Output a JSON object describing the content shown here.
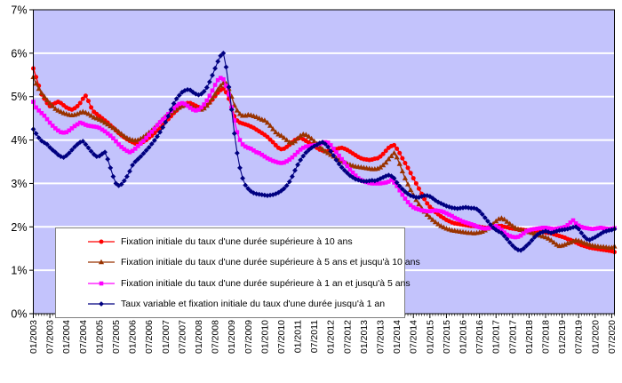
{
  "chart_data": {
    "type": "line",
    "title": "",
    "x_axis": {
      "label": "",
      "unit": "month",
      "start": "01/2003",
      "end": "08/2020",
      "n_months": 212,
      "tick_interval_months": 6,
      "tick_labels": [
        "01/2003",
        "07/2003",
        "01/2004",
        "07/2004",
        "01/2005",
        "07/2005",
        "01/2006",
        "07/2006",
        "01/2007",
        "07/2007",
        "01/2008",
        "07/2008",
        "01/2009",
        "07/2009",
        "01/2010",
        "07/2010",
        "01/2011",
        "07/2011",
        "01/2012",
        "07/2012",
        "01/2013",
        "07/2013",
        "01/2014",
        "07/2014",
        "01/2015",
        "07/2015",
        "01/2016",
        "07/2016",
        "01/2017",
        "07/2017",
        "01/2018",
        "07/2018",
        "01/2019",
        "07/2019",
        "01/2020",
        "07/2020"
      ]
    },
    "y_axis": {
      "label": "",
      "min": 0,
      "max": 7,
      "tick_labels": [
        "0%",
        "1%",
        "2%",
        "3%",
        "4%",
        "5%",
        "6%",
        "7%"
      ]
    },
    "layout": {
      "plot_background": "#C3C3FC",
      "gridline_color": "#FFFFFF",
      "border_color": "#000000",
      "outer_background": "#FFFFFF",
      "grid": "horizontal",
      "legend_position": "bottom-left-inside"
    },
    "series": [
      {
        "name": "Fixation initiale du taux d'une durée supérieure à 10 ans",
        "marker": "circle",
        "color": "#FF0000",
        "values": [
          5.65,
          5.45,
          5.25,
          5.05,
          4.95,
          4.85,
          4.78,
          4.82,
          4.85,
          4.88,
          4.85,
          4.8,
          4.75,
          4.72,
          4.7,
          4.73,
          4.78,
          4.85,
          4.95,
          5.02,
          4.9,
          4.75,
          4.65,
          4.6,
          4.55,
          4.5,
          4.45,
          4.4,
          4.34,
          4.28,
          4.22,
          4.16,
          4.11,
          4.06,
          4.02,
          3.98,
          3.95,
          3.92,
          3.9,
          3.92,
          3.96,
          4.0,
          4.05,
          4.1,
          4.16,
          4.22,
          4.28,
          4.35,
          4.42,
          4.48,
          4.55,
          4.62,
          4.68,
          4.74,
          4.79,
          4.83,
          4.85,
          4.85,
          4.82,
          4.79,
          4.76,
          4.74,
          4.76,
          4.8,
          4.86,
          4.93,
          5.01,
          5.09,
          5.15,
          5.18,
          5.1,
          4.95,
          4.75,
          4.55,
          4.45,
          4.4,
          4.38,
          4.36,
          4.34,
          4.31,
          4.28,
          4.24,
          4.2,
          4.16,
          4.12,
          4.07,
          4.01,
          3.95,
          3.88,
          3.82,
          3.79,
          3.8,
          3.84,
          3.89,
          3.95,
          4.0,
          4.03,
          4.05,
          4.02,
          3.98,
          3.94,
          3.9,
          3.86,
          3.82,
          3.78,
          3.76,
          3.74,
          3.74,
          3.75,
          3.77,
          3.79,
          3.81,
          3.82,
          3.8,
          3.77,
          3.73,
          3.69,
          3.65,
          3.61,
          3.58,
          3.56,
          3.55,
          3.54,
          3.55,
          3.57,
          3.58,
          3.62,
          3.68,
          3.75,
          3.82,
          3.86,
          3.88,
          3.8,
          3.7,
          3.58,
          3.47,
          3.36,
          3.24,
          3.12,
          3.0,
          2.88,
          2.76,
          2.64,
          2.54,
          2.46,
          2.4,
          2.34,
          2.29,
          2.24,
          2.2,
          2.16,
          2.13,
          2.1,
          2.08,
          2.07,
          2.06,
          2.05,
          2.04,
          2.03,
          2.02,
          2.02,
          2.01,
          2.0,
          1.99,
          1.98,
          1.98,
          1.99,
          2.0,
          2.01,
          2.02,
          2.02,
          2.0,
          1.99,
          1.97,
          1.96,
          1.95,
          1.94,
          1.94,
          1.93,
          1.92,
          1.92,
          1.91,
          1.91,
          1.9,
          1.89,
          1.88,
          1.87,
          1.86,
          1.85,
          1.83,
          1.81,
          1.79,
          1.77,
          1.75,
          1.72,
          1.7,
          1.67,
          1.64,
          1.61,
          1.58,
          1.56,
          1.54,
          1.52,
          1.51,
          1.5,
          1.49,
          1.48,
          1.47,
          1.46,
          1.45,
          1.44,
          1.42
        ]
      },
      {
        "name": "Fixation initiale du taux d'une durée supérieure à 5 ans et  jusqu'à 10 ans",
        "marker": "triangle",
        "color": "#993300",
        "values": [
          5.45,
          5.3,
          5.18,
          5.08,
          5.0,
          4.92,
          4.85,
          4.78,
          4.72,
          4.68,
          4.65,
          4.62,
          4.6,
          4.58,
          4.57,
          4.58,
          4.6,
          4.63,
          4.65,
          4.63,
          4.6,
          4.56,
          4.52,
          4.5,
          4.47,
          4.44,
          4.4,
          4.36,
          4.32,
          4.28,
          4.24,
          4.19,
          4.14,
          4.09,
          4.05,
          4.02,
          4.0,
          3.99,
          4.0,
          4.03,
          4.07,
          4.12,
          4.17,
          4.22,
          4.28,
          4.34,
          4.41,
          4.48,
          4.54,
          4.59,
          4.63,
          4.67,
          4.71,
          4.75,
          4.78,
          4.8,
          4.8,
          4.78,
          4.75,
          4.72,
          4.7,
          4.7,
          4.73,
          4.79,
          4.87,
          4.96,
          5.06,
          5.16,
          5.25,
          5.31,
          5.3,
          5.18,
          5.0,
          4.8,
          4.68,
          4.6,
          4.56,
          4.56,
          4.58,
          4.57,
          4.55,
          4.53,
          4.5,
          4.47,
          4.45,
          4.4,
          4.33,
          4.25,
          4.18,
          4.13,
          4.1,
          4.05,
          4.0,
          3.95,
          3.93,
          3.97,
          4.04,
          4.1,
          4.13,
          4.12,
          4.08,
          4.03,
          3.97,
          3.91,
          3.85,
          3.79,
          3.74,
          3.7,
          3.66,
          3.62,
          3.58,
          3.54,
          3.51,
          3.48,
          3.45,
          3.43,
          3.41,
          3.39,
          3.38,
          3.37,
          3.36,
          3.35,
          3.34,
          3.33,
          3.33,
          3.34,
          3.37,
          3.42,
          3.48,
          3.56,
          3.63,
          3.7,
          3.6,
          3.45,
          3.28,
          3.12,
          2.98,
          2.85,
          2.73,
          2.62,
          2.52,
          2.43,
          2.35,
          2.28,
          2.22,
          2.16,
          2.11,
          2.06,
          2.02,
          1.99,
          1.96,
          1.94,
          1.92,
          1.91,
          1.9,
          1.89,
          1.88,
          1.87,
          1.86,
          1.86,
          1.85,
          1.86,
          1.87,
          1.89,
          1.92,
          1.96,
          2.01,
          2.07,
          2.13,
          2.18,
          2.2,
          2.17,
          2.12,
          2.07,
          2.02,
          1.98,
          1.95,
          1.93,
          1.91,
          1.9,
          1.88,
          1.86,
          1.84,
          1.82,
          1.8,
          1.78,
          1.76,
          1.73,
          1.69,
          1.64,
          1.59,
          1.56,
          1.57,
          1.59,
          1.62,
          1.64,
          1.67,
          1.69,
          1.68,
          1.66,
          1.63,
          1.61,
          1.59,
          1.57,
          1.56,
          1.55,
          1.54,
          1.54,
          1.53,
          1.52,
          1.52,
          1.55
        ]
      },
      {
        "name": "Fixation initiale du taux d'une durée supérieure à 1 an et  jusqu'à 5 ans",
        "marker": "square",
        "color": "#FF00FF",
        "values": [
          4.88,
          4.75,
          4.68,
          4.62,
          4.56,
          4.48,
          4.4,
          4.33,
          4.27,
          4.22,
          4.18,
          4.17,
          4.18,
          4.22,
          4.27,
          4.32,
          4.36,
          4.4,
          4.38,
          4.35,
          4.33,
          4.32,
          4.31,
          4.3,
          4.28,
          4.24,
          4.2,
          4.15,
          4.1,
          4.04,
          3.97,
          3.9,
          3.84,
          3.79,
          3.75,
          3.72,
          3.75,
          3.8,
          3.86,
          3.92,
          3.98,
          4.05,
          4.12,
          4.19,
          4.26,
          4.34,
          4.41,
          4.47,
          4.53,
          4.6,
          4.67,
          4.73,
          4.79,
          4.83,
          4.85,
          4.83,
          4.79,
          4.74,
          4.7,
          4.68,
          4.7,
          4.75,
          4.82,
          4.91,
          5.02,
          5.14,
          5.27,
          5.38,
          5.43,
          5.4,
          5.25,
          5.05,
          4.75,
          4.45,
          4.18,
          4.0,
          3.9,
          3.85,
          3.82,
          3.8,
          3.76,
          3.72,
          3.7,
          3.66,
          3.62,
          3.58,
          3.55,
          3.52,
          3.5,
          3.48,
          3.47,
          3.48,
          3.51,
          3.55,
          3.6,
          3.66,
          3.72,
          3.78,
          3.82,
          3.85,
          3.86,
          3.87,
          3.88,
          3.89,
          3.91,
          3.93,
          3.95,
          3.94,
          3.88,
          3.8,
          3.72,
          3.64,
          3.56,
          3.48,
          3.4,
          3.32,
          3.25,
          3.18,
          3.12,
          3.08,
          3.05,
          3.03,
          3.01,
          3.0,
          3.0,
          3.0,
          3.0,
          3.01,
          3.02,
          3.04,
          3.08,
          3.02,
          2.94,
          2.84,
          2.74,
          2.65,
          2.57,
          2.5,
          2.45,
          2.42,
          2.4,
          2.38,
          2.37,
          2.36,
          2.36,
          2.37,
          2.38,
          2.37,
          2.36,
          2.34,
          2.31,
          2.28,
          2.25,
          2.21,
          2.18,
          2.15,
          2.12,
          2.1,
          2.08,
          2.06,
          2.04,
          2.01,
          1.99,
          1.97,
          1.96,
          1.97,
          1.98,
          2.0,
          2.02,
          1.98,
          1.93,
          1.87,
          1.82,
          1.79,
          1.77,
          1.76,
          1.77,
          1.8,
          1.85,
          1.9,
          1.92,
          1.94,
          1.95,
          1.96,
          1.97,
          1.98,
          1.98,
          1.97,
          1.96,
          1.95,
          1.96,
          1.97,
          1.98,
          2.0,
          2.04,
          2.1,
          2.15,
          2.08,
          2.03,
          2.0,
          1.98,
          1.97,
          1.96,
          1.95,
          1.96,
          1.97,
          1.98,
          1.97,
          1.96,
          1.95,
          1.96,
          1.97
        ]
      },
      {
        "name": "Taux variable et fixation initiale du taux d'une durée jusqu'à 1 an",
        "marker": "diamond",
        "color": "#000080",
        "values": [
          4.25,
          4.15,
          4.05,
          3.98,
          3.94,
          3.9,
          3.83,
          3.77,
          3.72,
          3.66,
          3.62,
          3.6,
          3.64,
          3.7,
          3.77,
          3.84,
          3.9,
          3.95,
          3.97,
          3.9,
          3.82,
          3.74,
          3.67,
          3.62,
          3.63,
          3.68,
          3.72,
          3.56,
          3.36,
          3.16,
          3.0,
          2.95,
          2.98,
          3.06,
          3.16,
          3.28,
          3.42,
          3.5,
          3.56,
          3.62,
          3.69,
          3.76,
          3.83,
          3.91,
          3.99,
          4.08,
          4.18,
          4.29,
          4.41,
          4.55,
          4.7,
          4.84,
          4.95,
          5.03,
          5.1,
          5.14,
          5.16,
          5.15,
          5.1,
          5.06,
          5.04,
          5.06,
          5.12,
          5.21,
          5.34,
          5.49,
          5.65,
          5.81,
          5.94,
          6.0,
          5.68,
          5.22,
          4.7,
          4.15,
          3.7,
          3.36,
          3.12,
          2.96,
          2.88,
          2.82,
          2.78,
          2.76,
          2.75,
          2.74,
          2.73,
          2.72,
          2.73,
          2.74,
          2.76,
          2.79,
          2.83,
          2.88,
          2.95,
          3.04,
          3.16,
          3.3,
          3.43,
          3.54,
          3.63,
          3.71,
          3.77,
          3.82,
          3.86,
          3.89,
          3.93,
          3.95,
          3.91,
          3.84,
          3.74,
          3.64,
          3.54,
          3.45,
          3.37,
          3.3,
          3.24,
          3.18,
          3.14,
          3.1,
          3.08,
          3.06,
          3.05,
          3.05,
          3.06,
          3.07,
          3.06,
          3.08,
          3.11,
          3.14,
          3.17,
          3.19,
          3.17,
          3.12,
          3.02,
          2.94,
          2.87,
          2.81,
          2.76,
          2.72,
          2.7,
          2.68,
          2.68,
          2.7,
          2.72,
          2.72,
          2.7,
          2.66,
          2.61,
          2.57,
          2.54,
          2.51,
          2.48,
          2.46,
          2.44,
          2.43,
          2.42,
          2.43,
          2.44,
          2.45,
          2.44,
          2.43,
          2.43,
          2.41,
          2.36,
          2.29,
          2.21,
          2.13,
          2.05,
          1.98,
          1.93,
          1.89,
          1.86,
          1.79,
          1.72,
          1.64,
          1.57,
          1.51,
          1.47,
          1.46,
          1.5,
          1.56,
          1.62,
          1.69,
          1.76,
          1.82,
          1.86,
          1.88,
          1.9,
          1.88,
          1.86,
          1.88,
          1.9,
          1.92,
          1.93,
          1.94,
          1.95,
          1.97,
          1.99,
          2.0,
          1.95,
          1.86,
          1.78,
          1.72,
          1.7,
          1.73,
          1.76,
          1.8,
          1.84,
          1.88,
          1.9,
          1.92,
          1.93,
          1.95
        ]
      }
    ]
  }
}
